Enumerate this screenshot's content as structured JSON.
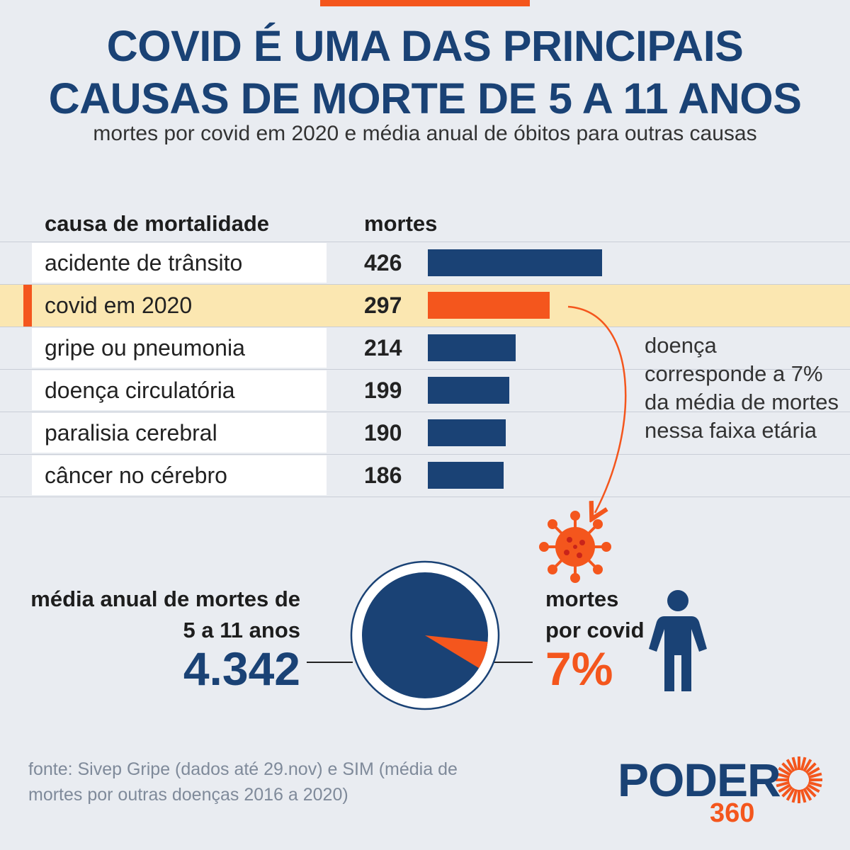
{
  "header": {
    "title_line1": "COVID É UMA DAS PRINCIPAIS",
    "title_line2": "CAUSAS DE MORTE DE 5 A 11 ANOS",
    "subtitle": "mortes por covid em 2020 e média anual de óbitos para outras causas"
  },
  "chart_data": {
    "type": "bar",
    "orientation": "horizontal",
    "columns": {
      "cause": "causa de mortalidade",
      "deaths": "mortes"
    },
    "categories": [
      "acidente de trânsito",
      "covid em 2020",
      "gripe ou pneumonia",
      "doença circulatória",
      "paralisia cerebral",
      "câncer no cérebro"
    ],
    "values": [
      426,
      297,
      214,
      199,
      190,
      186
    ],
    "value_labels": [
      "426",
      "297",
      "214",
      "199",
      "190",
      "186"
    ],
    "highlight_index": 1,
    "max": 426
  },
  "annotation": {
    "note": "doença corresponde a 7% da média de mortes nessa faixa etária"
  },
  "pie": {
    "total_label": "média anual de mortes de 5 a 11 anos",
    "total_value": "4.342",
    "covid_label": "mortes por covid",
    "covid_value": "7%",
    "covid_fraction": 0.07
  },
  "colors": {
    "navy": "#1a4275",
    "orange": "#f4561d",
    "highlight_row": "#fbe7b1",
    "bg": "#e9ecf1"
  },
  "icons": {
    "virus": "virus-icon",
    "person": "person-icon",
    "sun": "sunburst-logo-icon"
  },
  "footer": {
    "source": "fonte: Sivep Gripe (dados até 29.nov) e SIM (média de mortes por outras doenças 2016 a 2020)",
    "logo_main": "PODER",
    "logo_sub": "360"
  }
}
